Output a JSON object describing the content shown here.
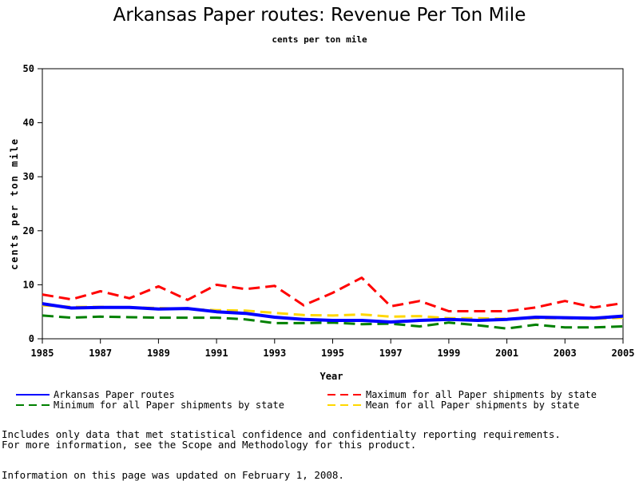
{
  "chart_data": {
    "type": "line",
    "title": "Arkansas Paper routes: Revenue Per Ton Mile",
    "subtitle": "cents per ton mile",
    "xlabel": "Year",
    "ylabel": "cents per ton mile",
    "x": [
      1985,
      1986,
      1987,
      1988,
      1989,
      1990,
      1991,
      1992,
      1993,
      1994,
      1995,
      1996,
      1997,
      1998,
      1999,
      2000,
      2001,
      2002,
      2003,
      2004,
      2005
    ],
    "xticks": [
      "1985",
      "1987",
      "1989",
      "1991",
      "1993",
      "1995",
      "1997",
      "1999",
      "2001",
      "2003",
      "2005"
    ],
    "yticks": [
      "0",
      "10",
      "20",
      "30",
      "40",
      "50"
    ],
    "xlim": [
      1985,
      2005
    ],
    "ylim": [
      0,
      50
    ],
    "grid": false,
    "legend_position": "bottom",
    "series": [
      {
        "name": "Arkansas Paper routes",
        "color": "#0000ff",
        "style": "solid",
        "values": [
          6.5,
          5.7,
          5.8,
          5.8,
          5.5,
          5.6,
          5.0,
          4.7,
          4.0,
          3.6,
          3.4,
          3.4,
          3.1,
          3.4,
          3.6,
          3.4,
          3.6,
          4.0,
          3.9,
          3.8,
          4.2
        ]
      },
      {
        "name": "Maximum for all Paper shipments by state",
        "color": "#ff0000",
        "style": "dashed",
        "values": [
          8.2,
          7.3,
          8.8,
          7.5,
          9.7,
          7.2,
          10.0,
          9.2,
          9.8,
          6.2,
          8.5,
          11.3,
          6.0,
          7.0,
          5.1,
          5.1,
          5.1,
          5.8,
          7.0,
          5.8,
          6.6
        ]
      },
      {
        "name": "Minimum for all Paper shipments by state",
        "color": "#008000",
        "style": "dashed",
        "values": [
          4.3,
          3.9,
          4.1,
          4.0,
          3.9,
          3.9,
          3.9,
          3.6,
          2.9,
          2.9,
          3.0,
          2.7,
          2.8,
          2.3,
          3.0,
          2.5,
          1.9,
          2.6,
          2.1,
          2.1,
          2.3
        ]
      },
      {
        "name": "Mean for all Paper shipments by state",
        "color": "#ffd700",
        "style": "dashed",
        "values": [
          6.2,
          5.9,
          5.9,
          5.8,
          5.7,
          5.5,
          5.3,
          5.2,
          4.8,
          4.4,
          4.3,
          4.5,
          4.1,
          4.2,
          3.8,
          3.8,
          3.7,
          3.8,
          3.8,
          3.7,
          3.9
        ]
      }
    ]
  },
  "notes": {
    "line1": "Includes only data that met statistical confidence and confidentialty reporting requirements.",
    "line2": "For more information, see the Scope and Methodology for this product.",
    "line3": "Information on this page was updated on February 1, 2008."
  }
}
